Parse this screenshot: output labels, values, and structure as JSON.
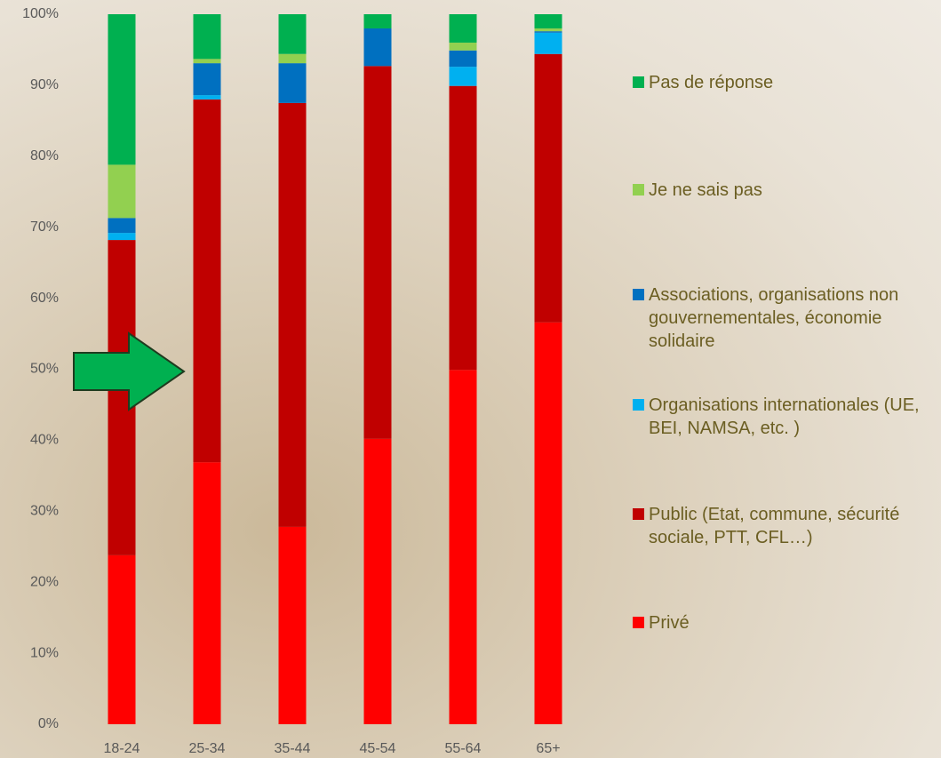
{
  "chart_data": {
    "type": "stacked-bar",
    "categories": [
      "18-24",
      "25-34",
      "35-44",
      "45-54",
      "55-64",
      "65+"
    ],
    "series": [
      {
        "name": "Privé",
        "color": "#ff0000",
        "values": [
          23.8,
          36.9,
          27.8,
          40.2,
          49.9,
          56.6
        ]
      },
      {
        "name": "Public (Etat, commune, sécurité sociale, PTT, CFL…)",
        "color": "#c00000",
        "values": [
          44.4,
          51.1,
          59.7,
          52.5,
          40.0,
          37.8
        ]
      },
      {
        "name": "Organisations internationales (UE, BEI, NAMSA, etc. )",
        "color": "#00b0f0",
        "values": [
          1.0,
          0.6,
          0,
          0,
          2.7,
          3.0
        ]
      },
      {
        "name": "Associations, organisations non gouvernementales, économie solidaire",
        "color": "#0070c0",
        "values": [
          2.1,
          4.5,
          5.6,
          5.3,
          2.3,
          0.2
        ]
      },
      {
        "name": "Je ne sais pas",
        "color": "#92d050",
        "values": [
          7.5,
          0.6,
          1.3,
          0,
          1.1,
          0.4
        ]
      },
      {
        "name": "Pas de réponse",
        "color": "#00b050",
        "values": [
          21.2,
          6.3,
          5.6,
          2.0,
          4.0,
          2.0
        ]
      }
    ],
    "ylim": [
      0,
      100
    ],
    "yticks": [
      {
        "value": 0,
        "label": "0%"
      },
      {
        "value": 10,
        "label": "10%"
      },
      {
        "value": 20,
        "label": "20%"
      },
      {
        "value": 30,
        "label": "30%"
      },
      {
        "value": 40,
        "label": "40%"
      },
      {
        "value": 50,
        "label": "50%"
      },
      {
        "value": 60,
        "label": "60%"
      },
      {
        "value": 70,
        "label": "70%"
      },
      {
        "value": 80,
        "label": "80%"
      },
      {
        "value": 90,
        "label": "90%"
      },
      {
        "value": 100,
        "label": "100%"
      }
    ]
  }
}
